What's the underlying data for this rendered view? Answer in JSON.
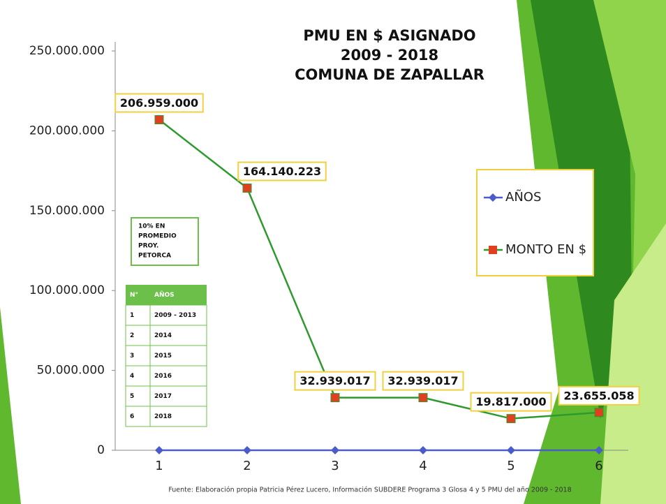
{
  "chart_data": {
    "type": "line",
    "title": [
      "PMU EN $ ASIGNADO",
      "2009 - 2018",
      "COMUNA DE ZAPALLAR"
    ],
    "categories": [
      "1",
      "2",
      "3",
      "4",
      "5",
      "6"
    ],
    "series": [
      {
        "name": "AÑOS",
        "color": "#4a5cc8",
        "marker": "diamond",
        "values": [
          0,
          0,
          0,
          0,
          0,
          0
        ]
      },
      {
        "name": "MONTO EN $",
        "color": "#2e9a2e",
        "marker": "square",
        "marker_color": "#e04020",
        "values": [
          206959000,
          164140223,
          32939017,
          32939017,
          19817000,
          23655058
        ],
        "value_labels": [
          "206.959.000",
          "164.140.223",
          "32.939.017",
          "32.939.017",
          "19.817.000",
          "23.655.058"
        ]
      }
    ],
    "ylim": [
      0,
      250000000
    ],
    "yticks": [
      0,
      {
        "value": 50000000,
        "label": "50.000.000"
      },
      {
        "value": 100000000,
        "label": "100.000.000"
      },
      {
        "value": 150000000,
        "label": "150.000.000"
      },
      {
        "value": 200000000,
        "label": "200.000.000"
      },
      {
        "value": 250000000,
        "label": "250.000.000"
      }
    ],
    "legend": "right",
    "annotation": [
      "10% EN",
      "PROMEDIO",
      "PROY.",
      "PETORCA"
    ],
    "table": {
      "header": [
        "N°",
        "AÑOS"
      ],
      "rows": [
        [
          "1",
          "2009 - 2013"
        ],
        [
          "2",
          "2014"
        ],
        [
          "3",
          "2015"
        ],
        [
          "4",
          "2016"
        ],
        [
          "5",
          "2017"
        ],
        [
          "6",
          "2018"
        ]
      ]
    },
    "source": "Fuente: Elaboración propia Patricia Pérez Lucero, Información SUBDERE Programa 3 Glosa 4 y 5 PMU del año 2009 - 2018"
  }
}
